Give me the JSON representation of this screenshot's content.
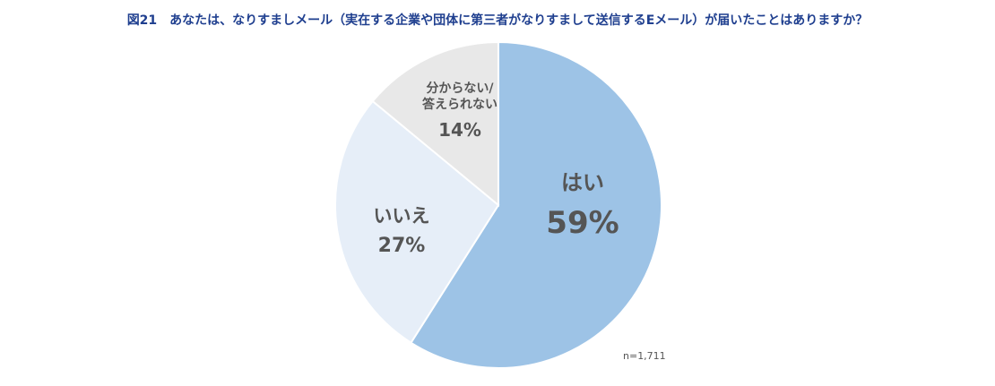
{
  "title": "図21　あなたは、なりすましメール（実在する企業や団体に第三者がなりすまして送信するEメール）が届いたことはありますか？",
  "sample_size": "n=1,711",
  "chart_data": {
    "type": "pie",
    "title": "図21　あなたは、なりすましメール（実在する企業や団体に第三者がなりすまして送信するEメール）が届いたことはありますか？",
    "start": "12 o'clock",
    "direction": "clockwise",
    "slices": [
      {
        "label": "はい",
        "label_lines": [
          "はい"
        ],
        "value": 59,
        "value_label": "59%",
        "color": "#9dc3e6"
      },
      {
        "label": "いいえ",
        "label_lines": [
          "いいえ"
        ],
        "value": 27,
        "value_label": "27%",
        "color": "#e6eef8"
      },
      {
        "label": "分からない/答えられない",
        "label_lines": [
          "分からない/",
          "答えられない"
        ],
        "value": 14,
        "value_label": "14%",
        "color": "#e8e8e8"
      }
    ]
  }
}
